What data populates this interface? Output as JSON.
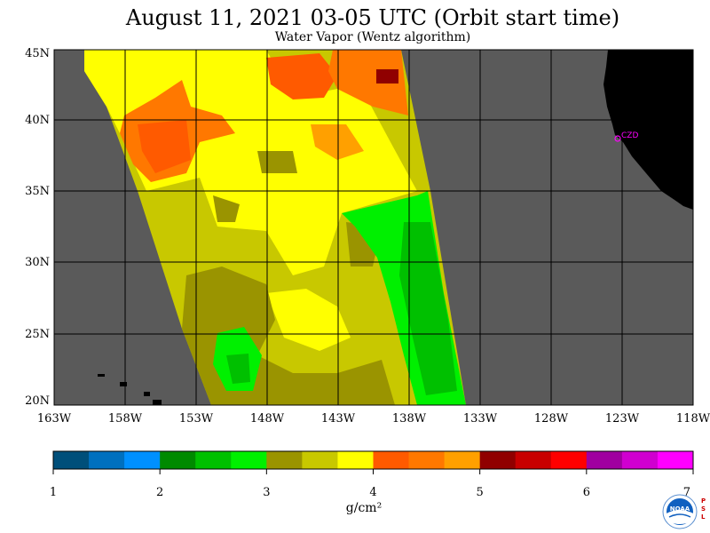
{
  "title": "August 11, 2021  03-05 UTC  (Orbit start time)",
  "subtitle": "Water Vapor (Wentz algorithm)",
  "map": {
    "lon_labels": [
      "163W",
      "158W",
      "153W",
      "148W",
      "143W",
      "138W",
      "133W",
      "128W",
      "123W",
      "118W"
    ],
    "lat_labels": [
      "45N",
      "40N",
      "35N",
      "30N",
      "25N",
      "20N"
    ],
    "station_label": "CZD",
    "colors": {
      "no_data": "#5a5a5a",
      "land": "#000000",
      "station": "#ff00ff",
      "grid": "#000000"
    }
  },
  "colorbar": {
    "tick_labels": [
      "1",
      "2",
      "3",
      "4",
      "5",
      "6",
      "7"
    ],
    "units": "g/cm²",
    "colors": [
      "#004f7a",
      "#0070bf",
      "#0090ff",
      "#008a00",
      "#00c000",
      "#00f000",
      "#9a9400",
      "#c8c800",
      "#ffff00",
      "#ff5a00",
      "#ff7800",
      "#ffa000",
      "#900000",
      "#c80000",
      "#ff0000",
      "#a000a0",
      "#d000d0",
      "#ff00ff"
    ]
  },
  "logos": {
    "noaa": "NOAA",
    "psl": "PSL"
  },
  "icons": {
    "noaa_logo": "noaa-logo-icon",
    "station_marker": "station-marker-icon"
  }
}
